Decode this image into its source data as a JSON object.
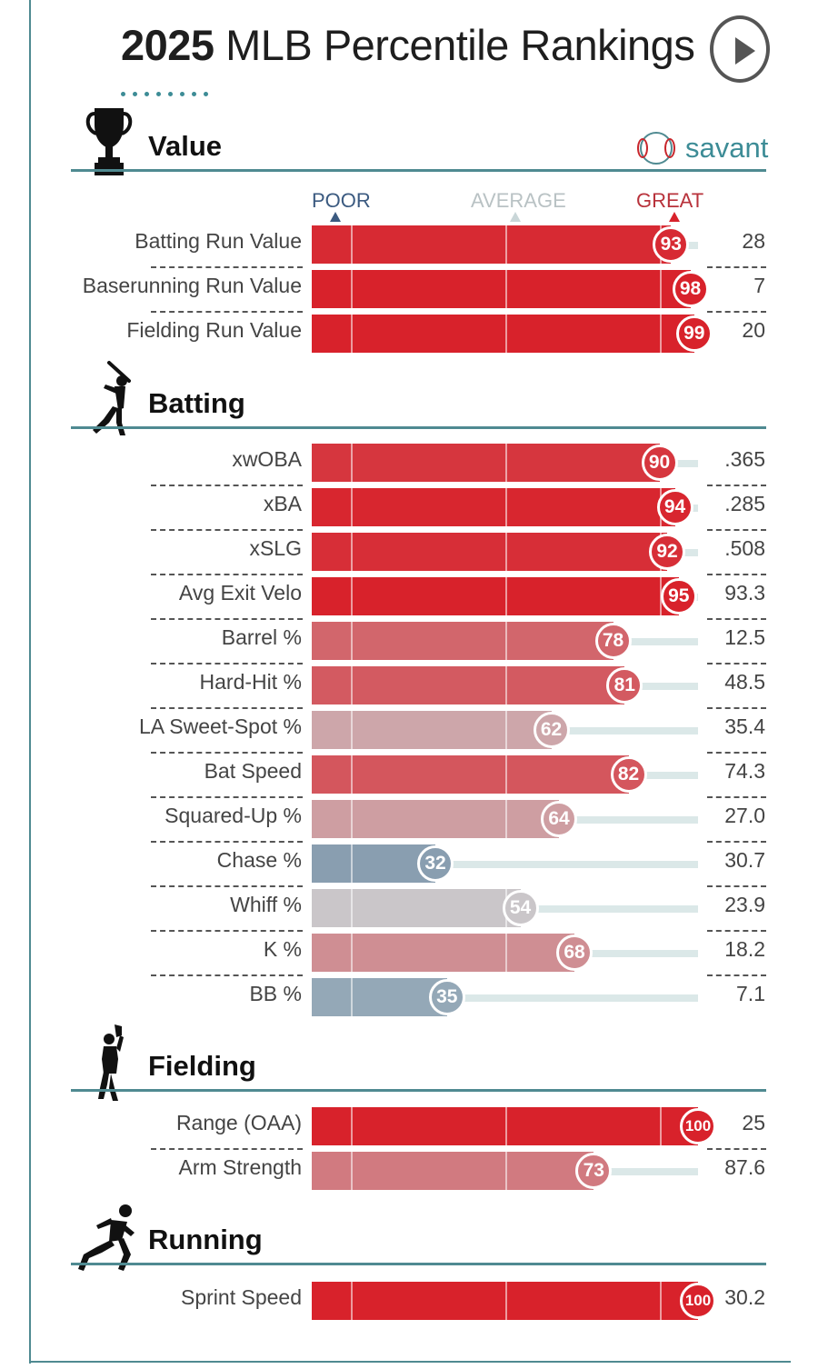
{
  "header": {
    "title_year": "2025",
    "title_rest": "MLB Percentile Rankings",
    "play_button": "play-icon",
    "brand": "savant",
    "brand_icon": "baseball-icon"
  },
  "scale": {
    "poor": "POOR",
    "average": "AVERAGE",
    "great": "GREAT"
  },
  "colors": {
    "accent": "#4f8a91",
    "great": "#d8222b",
    "poor": "#3b5a80",
    "average": "#c9d6d8"
  },
  "chart_data": {
    "type": "bar",
    "title": "2025 MLB Percentile Rankings",
    "xlim": [
      0,
      100
    ],
    "sections": [
      {
        "name": "Value",
        "icon": "trophy-icon",
        "rows": [
          {
            "label": "Batting Run Value",
            "percentile": 93,
            "value": "28"
          },
          {
            "label": "Baserunning Run Value",
            "percentile": 98,
            "value": "7"
          },
          {
            "label": "Fielding Run Value",
            "percentile": 99,
            "value": "20"
          }
        ]
      },
      {
        "name": "Batting",
        "icon": "batter-icon",
        "rows": [
          {
            "label": "xwOBA",
            "percentile": 90,
            "value": ".365"
          },
          {
            "label": "xBA",
            "percentile": 94,
            "value": ".285"
          },
          {
            "label": "xSLG",
            "percentile": 92,
            "value": ".508"
          },
          {
            "label": "Avg Exit Velo",
            "percentile": 95,
            "value": "93.3"
          },
          {
            "label": "Barrel %",
            "percentile": 78,
            "value": "12.5"
          },
          {
            "label": "Hard-Hit %",
            "percentile": 81,
            "value": "48.5"
          },
          {
            "label": "LA Sweet-Spot %",
            "percentile": 62,
            "value": "35.4"
          },
          {
            "label": "Bat Speed",
            "percentile": 82,
            "value": "74.3"
          },
          {
            "label": "Squared-Up %",
            "percentile": 64,
            "value": "27.0"
          },
          {
            "label": "Chase %",
            "percentile": 32,
            "value": "30.7"
          },
          {
            "label": "Whiff %",
            "percentile": 54,
            "value": "23.9"
          },
          {
            "label": "K %",
            "percentile": 68,
            "value": "18.2"
          },
          {
            "label": "BB %",
            "percentile": 35,
            "value": "7.1"
          }
        ]
      },
      {
        "name": "Fielding",
        "icon": "fielder-icon",
        "rows": [
          {
            "label": "Range (OAA)",
            "percentile": 100,
            "value": "25"
          },
          {
            "label": "Arm Strength",
            "percentile": 73,
            "value": "87.6"
          }
        ]
      },
      {
        "name": "Running",
        "icon": "runner-icon",
        "rows": [
          {
            "label": "Sprint Speed",
            "percentile": 100,
            "value": "30.2"
          }
        ]
      }
    ]
  }
}
